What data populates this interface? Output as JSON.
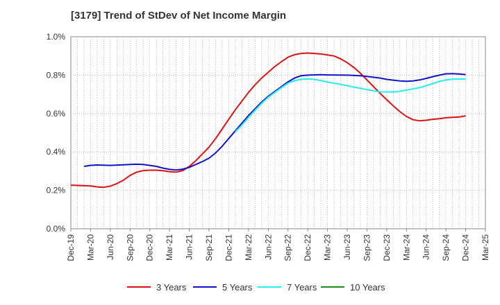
{
  "chart_data": {
    "type": "line",
    "title": "[3179]  Trend of StDev of Net Income Margin",
    "xlabel": "",
    "ylabel": "",
    "ylim": [
      0,
      1.0
    ],
    "y_ticks": [
      "0.0%",
      "0.2%",
      "0.4%",
      "0.6%",
      "0.8%",
      "1.0%"
    ],
    "x_ticks": [
      "Dec-19",
      "Mar-20",
      "Jun-20",
      "Sep-20",
      "Dec-20",
      "Mar-21",
      "Jun-21",
      "Sep-21",
      "Dec-21",
      "Mar-22",
      "Jun-22",
      "Sep-22",
      "Dec-22",
      "Mar-23",
      "Jun-23",
      "Sep-23",
      "Dec-23",
      "Mar-24",
      "Jun-24",
      "Sep-24",
      "Dec-24",
      "Mar-25"
    ],
    "grid": true,
    "legend_position": "bottom",
    "series": [
      {
        "name": "3 Years",
        "color": "#dd1111",
        "points": [
          [
            "Dec-19",
            0.227
          ],
          [
            "Mar-20",
            0.223
          ],
          [
            "Apr-20",
            0.218
          ],
          [
            "May-20",
            0.216
          ],
          [
            "Jun-20",
            0.222
          ],
          [
            "Jul-20",
            0.235
          ],
          [
            "Aug-20",
            0.253
          ],
          [
            "Sep-20",
            0.278
          ],
          [
            "Oct-20",
            0.295
          ],
          [
            "Nov-20",
            0.303
          ],
          [
            "Dec-20",
            0.305
          ],
          [
            "Jan-21",
            0.305
          ],
          [
            "Feb-21",
            0.302
          ],
          [
            "Mar-21",
            0.297
          ],
          [
            "Apr-21",
            0.295
          ],
          [
            "May-21",
            0.303
          ],
          [
            "Jun-21",
            0.325
          ],
          [
            "Jul-21",
            0.355
          ],
          [
            "Aug-21",
            0.39
          ],
          [
            "Sep-21",
            0.425
          ],
          [
            "Oct-21",
            0.47
          ],
          [
            "Nov-21",
            0.52
          ],
          [
            "Dec-21",
            0.57
          ],
          [
            "Jan-22",
            0.62
          ],
          [
            "Feb-22",
            0.665
          ],
          [
            "Mar-22",
            0.71
          ],
          [
            "Apr-22",
            0.75
          ],
          [
            "May-22",
            0.785
          ],
          [
            "Jun-22",
            0.815
          ],
          [
            "Jul-22",
            0.845
          ],
          [
            "Aug-22",
            0.87
          ],
          [
            "Sep-22",
            0.893
          ],
          [
            "Oct-22",
            0.907
          ],
          [
            "Nov-22",
            0.913
          ],
          [
            "Dec-22",
            0.915
          ],
          [
            "Jan-23",
            0.913
          ],
          [
            "Feb-23",
            0.91
          ],
          [
            "Mar-23",
            0.905
          ],
          [
            "Apr-23",
            0.9
          ],
          [
            "May-23",
            0.885
          ],
          [
            "Jun-23",
            0.865
          ],
          [
            "Jul-23",
            0.84
          ],
          [
            "Aug-23",
            0.81
          ],
          [
            "Sep-23",
            0.775
          ],
          [
            "Oct-23",
            0.74
          ],
          [
            "Nov-23",
            0.705
          ],
          [
            "Dec-23",
            0.672
          ],
          [
            "Jan-24",
            0.64
          ],
          [
            "Feb-24",
            0.61
          ],
          [
            "Mar-24",
            0.585
          ],
          [
            "Apr-24",
            0.568
          ],
          [
            "May-24",
            0.562
          ],
          [
            "Jun-24",
            0.565
          ],
          [
            "Jul-24",
            0.57
          ],
          [
            "Aug-24",
            0.573
          ],
          [
            "Sep-24",
            0.578
          ],
          [
            "Oct-24",
            0.58
          ],
          [
            "Nov-24",
            0.582
          ],
          [
            "Dec-24",
            0.588
          ]
        ]
      },
      {
        "name": "5 Years",
        "color": "#1111cc",
        "points": [
          [
            "Feb-20",
            0.325
          ],
          [
            "Mar-20",
            0.33
          ],
          [
            "Apr-20",
            0.332
          ],
          [
            "Jun-20",
            0.33
          ],
          [
            "Aug-20",
            0.333
          ],
          [
            "Sep-20",
            0.335
          ],
          [
            "Oct-20",
            0.336
          ],
          [
            "Nov-20",
            0.335
          ],
          [
            "Dec-20",
            0.33
          ],
          [
            "Jan-21",
            0.325
          ],
          [
            "Feb-21",
            0.316
          ],
          [
            "Mar-21",
            0.309
          ],
          [
            "Apr-21",
            0.306
          ],
          [
            "May-21",
            0.31
          ],
          [
            "Jun-21",
            0.32
          ],
          [
            "Jul-21",
            0.335
          ],
          [
            "Aug-21",
            0.35
          ],
          [
            "Sep-21",
            0.368
          ],
          [
            "Oct-21",
            0.395
          ],
          [
            "Nov-21",
            0.43
          ],
          [
            "Dec-21",
            0.47
          ],
          [
            "Jan-22",
            0.51
          ],
          [
            "Feb-22",
            0.55
          ],
          [
            "Mar-22",
            0.59
          ],
          [
            "Apr-22",
            0.625
          ],
          [
            "May-22",
            0.66
          ],
          [
            "Jun-22",
            0.69
          ],
          [
            "Jul-22",
            0.715
          ],
          [
            "Aug-22",
            0.74
          ],
          [
            "Sep-22",
            0.765
          ],
          [
            "Oct-22",
            0.785
          ],
          [
            "Nov-22",
            0.797
          ],
          [
            "Dec-22",
            0.8
          ],
          [
            "Feb-23",
            0.802
          ],
          [
            "Mar-23",
            0.801
          ],
          [
            "Jun-23",
            0.8
          ],
          [
            "Aug-23",
            0.797
          ],
          [
            "Sep-23",
            0.793
          ],
          [
            "Nov-23",
            0.785
          ],
          [
            "Dec-23",
            0.778
          ],
          [
            "Feb-24",
            0.77
          ],
          [
            "Mar-24",
            0.768
          ],
          [
            "Apr-24",
            0.77
          ],
          [
            "May-24",
            0.775
          ],
          [
            "Jun-24",
            0.783
          ],
          [
            "Jul-24",
            0.792
          ],
          [
            "Aug-24",
            0.8
          ],
          [
            "Sep-24",
            0.807
          ],
          [
            "Oct-24",
            0.808
          ],
          [
            "Nov-24",
            0.806
          ],
          [
            "Dec-24",
            0.803
          ]
        ]
      },
      {
        "name": "7 Years",
        "color": "#22eeee",
        "points": [
          [
            "Jan-22",
            0.505
          ],
          [
            "Feb-22",
            0.54
          ],
          [
            "Mar-22",
            0.58
          ],
          [
            "Apr-22",
            0.617
          ],
          [
            "May-22",
            0.653
          ],
          [
            "Jun-22",
            0.685
          ],
          [
            "Jul-22",
            0.71
          ],
          [
            "Aug-22",
            0.735
          ],
          [
            "Sep-22",
            0.758
          ],
          [
            "Oct-22",
            0.772
          ],
          [
            "Nov-22",
            0.778
          ],
          [
            "Dec-22",
            0.78
          ],
          [
            "Jan-23",
            0.778
          ],
          [
            "Feb-23",
            0.772
          ],
          [
            "Mar-23",
            0.764
          ],
          [
            "May-23",
            0.752
          ],
          [
            "Jun-23",
            0.745
          ],
          [
            "Jul-23",
            0.738
          ],
          [
            "Sep-23",
            0.725
          ],
          [
            "Oct-23",
            0.718
          ],
          [
            "Nov-23",
            0.713
          ],
          [
            "Jan-24",
            0.712
          ],
          [
            "Feb-24",
            0.716
          ],
          [
            "Mar-24",
            0.722
          ],
          [
            "May-24",
            0.735
          ],
          [
            "Jun-24",
            0.745
          ],
          [
            "Jul-24",
            0.756
          ],
          [
            "Aug-24",
            0.767
          ],
          [
            "Sep-24",
            0.775
          ],
          [
            "Oct-24",
            0.779
          ],
          [
            "Nov-24",
            0.78
          ],
          [
            "Dec-24",
            0.779
          ]
        ]
      },
      {
        "name": "10 Years",
        "color": "#228822",
        "points": []
      }
    ]
  }
}
